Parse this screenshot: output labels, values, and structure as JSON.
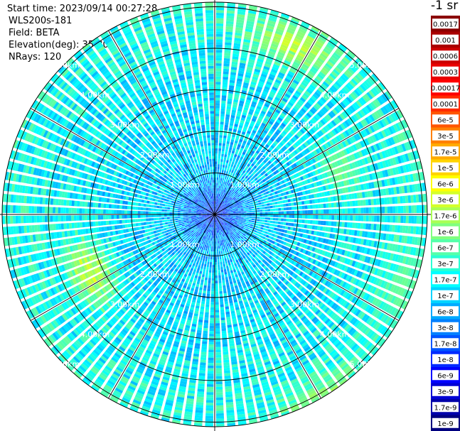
{
  "header": {
    "start_time": "Start time: 2023/09/14 00:27:28",
    "instrument": "WLS200s-181",
    "field": "Field: BETA",
    "elevation": "Elevation(deg): 35.30",
    "nrays": "NRays: 120"
  },
  "colorbar": {
    "unit_label": "-1 sr",
    "labels": [
      "0.0017",
      "0.001",
      "0.0006",
      "0.0003",
      "0.00017",
      "0.0001",
      "6e-5",
      "3e-5",
      "1.7e-5",
      "1e-5",
      "6e-6",
      "3e-6",
      "1.7e-6",
      "1e-6",
      "6e-7",
      "3e-7",
      "1.7e-7",
      "1e-7",
      "6e-8",
      "3e-8",
      "1.7e-8",
      "1e-8",
      "6e-9",
      "3e-9",
      "1.7e-9",
      "1e-9"
    ],
    "colors": [
      "#8b0000",
      "#aa0000",
      "#cc0000",
      "#e80000",
      "#ff0000",
      "#ff2a00",
      "#ff5500",
      "#ff8000",
      "#ffaa00",
      "#ffd400",
      "#ffff00",
      "#d4ff2a",
      "#aaff55",
      "#80ff80",
      "#55ffaa",
      "#2affd4",
      "#00ffff",
      "#00d4ff",
      "#00aaff",
      "#0080ff",
      "#0055ff",
      "#002aff",
      "#0000ff",
      "#0000d4",
      "#0000aa",
      "#00007f"
    ]
  },
  "chart_data": {
    "type": "ppi-polar",
    "field": "BETA",
    "elevation_deg": 35.3,
    "nrays": 120,
    "range_rings_km": [
      1,
      2,
      3,
      4,
      5
    ],
    "ring_labels": [
      "1.00km",
      "2.00km",
      "3.00km",
      "4.00km",
      "5.00km"
    ],
    "max_range_km": 5.6,
    "spoke_angles_deg": [
      0,
      30,
      60,
      90,
      120,
      150,
      180,
      210,
      240,
      270,
      300,
      330
    ],
    "dominant_range_1_to_5km": "1e-7 to 1.7e-6",
    "near_center_range": "6e-9 to 1.7e-8",
    "enhanced_patches": [
      {
        "azimuth_deg": 25,
        "range_km": 4.5,
        "value": "6e-6"
      },
      {
        "azimuth_deg": 70,
        "range_km": 3.2,
        "value": "1.7e-6"
      },
      {
        "azimuth_deg": 245,
        "range_km": 3.3,
        "value": "1e-5"
      },
      {
        "azimuth_deg": 150,
        "range_km": 5.2,
        "value": "3e-6"
      },
      {
        "azimuth_deg": 110,
        "range_km": 4.8,
        "value": "1e-6"
      }
    ]
  }
}
